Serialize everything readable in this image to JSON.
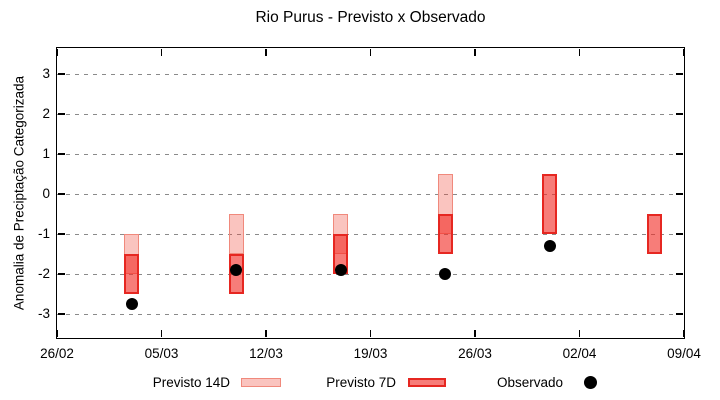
{
  "chart_data": {
    "type": "candlestick",
    "title": "Rio Purus - Previsto x Observado",
    "ylabel": "Anomalia de Preciptação Categorizada",
    "xlabel": "",
    "ylim": [
      -3.6,
      3.65
    ],
    "yticks": [
      3,
      2,
      1,
      0,
      -1,
      -2,
      -3
    ],
    "xlim_days": [
      0,
      42
    ],
    "xticks": [
      {
        "label": "26/02",
        "day": 0
      },
      {
        "label": "05/03",
        "day": 7
      },
      {
        "label": "12/03",
        "day": 14
      },
      {
        "label": "19/03",
        "day": 21
      },
      {
        "label": "26/03",
        "day": 28
      },
      {
        "label": "02/04",
        "day": 35
      },
      {
        "label": "09/04",
        "day": 42
      }
    ],
    "grid": "horizontal-dashed",
    "series": [
      {
        "name": "Previsto 14D",
        "type": "range-bar",
        "points": [
          {
            "date": "03/03",
            "day": 5,
            "high": -1.0,
            "low": -2.0
          },
          {
            "date": "10/03",
            "day": 12,
            "high": -0.5,
            "low": -1.5
          },
          {
            "date": "17/03",
            "day": 19,
            "high": -0.5,
            "low": -1.5
          },
          {
            "date": "24/03",
            "day": 26,
            "high": 0.5,
            "low": -1.0
          }
        ]
      },
      {
        "name": "Previsto 7D",
        "type": "range-bar",
        "points": [
          {
            "date": "03/03",
            "day": 5,
            "high": -1.5,
            "low": -2.5
          },
          {
            "date": "10/03",
            "day": 12,
            "high": -1.5,
            "low": -2.5
          },
          {
            "date": "17/03",
            "day": 19,
            "high": -1.0,
            "low": -2.0
          },
          {
            "date": "24/03",
            "day": 26,
            "high": -0.5,
            "low": -1.5
          },
          {
            "date": "31/03",
            "day": 33,
            "high": 0.5,
            "low": -1.0
          },
          {
            "date": "07/04",
            "day": 40,
            "high": -0.5,
            "low": -1.5
          }
        ]
      },
      {
        "name": "Observado",
        "type": "scatter",
        "points": [
          {
            "date": "03/03",
            "day": 5,
            "value": -2.75
          },
          {
            "date": "10/03",
            "day": 12,
            "value": -1.9
          },
          {
            "date": "17/03",
            "day": 19,
            "value": -1.9
          },
          {
            "date": "24/03",
            "day": 26,
            "value": -2.0
          },
          {
            "date": "31/03",
            "day": 33,
            "value": -1.3
          }
        ]
      }
    ],
    "legend": {
      "position": "below-plot",
      "entries": [
        {
          "label": "Previsto 14D",
          "marker": "light-pink-box"
        },
        {
          "label": "Previsto 7D",
          "marker": "red-box"
        },
        {
          "label": "Observado",
          "marker": "black-dot"
        }
      ]
    },
    "colors": {
      "previsto_14d_fill": "rgba(240,70,55,0.32)",
      "previsto_14d_border": "#f0897c",
      "previsto_7d_fill": "rgba(242,45,38,0.62)",
      "previsto_7d_border": "#e62721",
      "overlap_fill_effective": "#f56660",
      "observado": "#000000",
      "grid": "#8a8a8a",
      "axis": "#000000",
      "background": "#ffffff"
    }
  }
}
